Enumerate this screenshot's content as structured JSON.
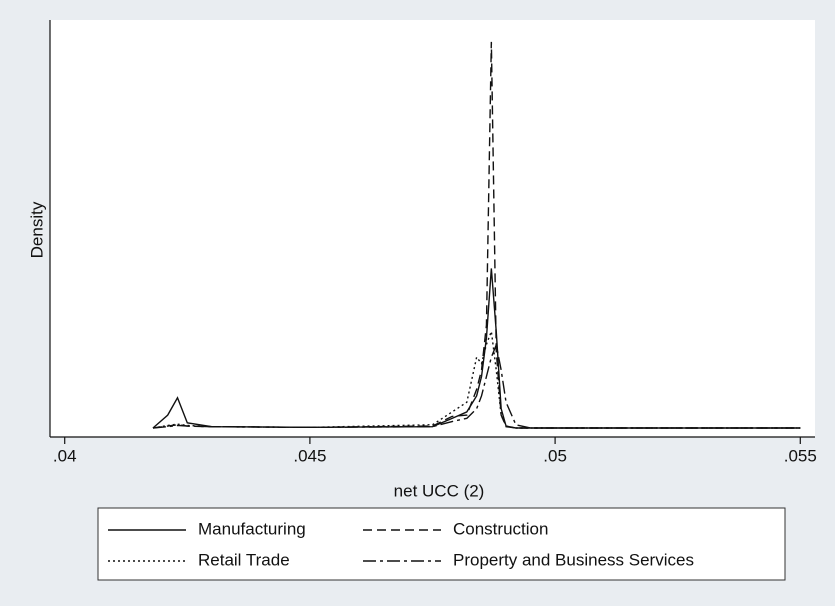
{
  "chart_data": {
    "type": "line",
    "x_label": "net UCC (2)",
    "y_label": "Density",
    "x": [
      0.0418,
      0.0421,
      0.0423,
      0.0425,
      0.043,
      0.045,
      0.0475,
      0.0479,
      0.0482,
      0.0484,
      0.0485,
      0.0486,
      0.0487,
      0.0488,
      0.0489,
      0.049,
      0.0492,
      0.0495,
      0.055
    ],
    "xlim": [
      0.0397,
      0.0553
    ],
    "xticks": [
      {
        "value": 0.04,
        "label": ".04"
      },
      {
        "value": 0.045,
        "label": ".045"
      },
      {
        "value": 0.05,
        "label": ".05"
      },
      {
        "value": 0.055,
        "label": ".055"
      }
    ],
    "ylim": [
      -140,
      6340
    ],
    "series": [
      {
        "name": "Manufacturing",
        "color": "#111111",
        "dash": "solid",
        "values": [
          0,
          200,
          470,
          80,
          20,
          10,
          20,
          150,
          250,
          500,
          800,
          1400,
          2480,
          1500,
          300,
          30,
          0,
          0,
          0
        ]
      },
      {
        "name": "Construction",
        "color": "#111111",
        "dash": "dashed",
        "values": [
          0,
          30,
          50,
          30,
          20,
          10,
          30,
          180,
          200,
          600,
          900,
          1600,
          6000,
          1200,
          200,
          20,
          0,
          0,
          0
        ]
      },
      {
        "name": "Retail Trade",
        "color": "#111111",
        "dash": "dotted",
        "values": [
          0,
          40,
          60,
          40,
          20,
          10,
          50,
          250,
          400,
          1100,
          1000,
          1300,
          1500,
          900,
          200,
          30,
          0,
          0,
          0
        ]
      },
      {
        "name": "Property and Business Services",
        "color": "#111111",
        "dash": "dashdot",
        "values": [
          0,
          20,
          40,
          30,
          20,
          10,
          20,
          100,
          150,
          300,
          500,
          800,
          1100,
          1290,
          900,
          400,
          50,
          0,
          0
        ]
      }
    ],
    "legend": "bottom"
  }
}
